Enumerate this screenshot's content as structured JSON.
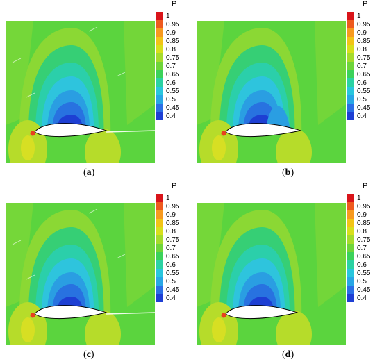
{
  "colorbar": {
    "title": "P",
    "ticks": [
      "1",
      "0.95",
      "0.9",
      "0.85",
      "0.8",
      "0.75",
      "0.7",
      "0.65",
      "0.6",
      "0.55",
      "0.5",
      "0.45",
      "0.4"
    ],
    "colors": [
      "#d9141a",
      "#ee5a1e",
      "#f79a1f",
      "#f2c417",
      "#d8df1c",
      "#a6db2c",
      "#6fd53a",
      "#3bd25a",
      "#2bd2a3",
      "#29c6dd",
      "#28a7e6",
      "#2a6fe6",
      "#1e3fd4"
    ]
  },
  "field_colors": {
    "background": "#5bd43e",
    "band_075": "#8bd834",
    "band_065": "#36cf75",
    "band_060": "#2bcfaa",
    "band_055": "#2ec4dd",
    "band_050": "#2a9ee2",
    "band_045": "#2872e0",
    "band_040": "#1d3fd3",
    "lobe_080": "#b6dc2a",
    "lobe_085": "#d7df23",
    "stagnation": "#e8401e"
  },
  "panels": [
    {
      "label": "a",
      "caption_open": "(",
      "caption_close": ")",
      "streaks": true
    },
    {
      "label": "b",
      "caption_open": "(",
      "caption_close": ")",
      "streaks": false
    },
    {
      "label": "c",
      "caption_open": "(",
      "caption_close": ")",
      "streaks": true
    },
    {
      "label": "d",
      "caption_open": "(",
      "caption_close": ")",
      "streaks": false
    }
  ]
}
